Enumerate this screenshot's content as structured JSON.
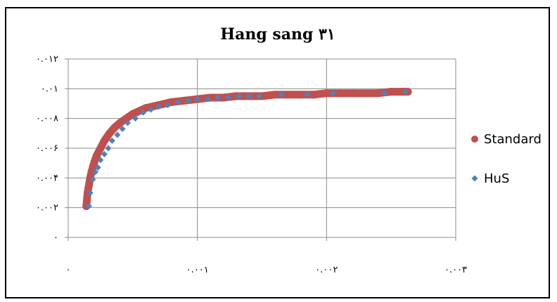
{
  "chart_data": {
    "type": "scatter",
    "title": "Hang sang ۳۱",
    "xlabel": "",
    "ylabel": "",
    "xlim": [
      0,
      0.003
    ],
    "ylim": [
      0,
      0.012
    ],
    "x_tick_labels": [
      "۰",
      "۰.۰۰۱",
      "۰.۰۰۲",
      "۰.۰۰۳"
    ],
    "y_tick_labels": [
      "۰",
      "۰.۰۰۲",
      "۰.۰۰۴",
      "۰.۰۰۶",
      "۰.۰۰۸",
      "۰.۰۱",
      "۰.۰۱۲"
    ],
    "grid": true,
    "legend_position": "right",
    "series": [
      {
        "name": "Standard",
        "color": "#c0504d",
        "marker": "circle",
        "x": [
          0.00014,
          0.000145,
          0.00015,
          0.00016,
          0.00017,
          0.00018,
          0.0002,
          0.00022,
          0.00025,
          0.00028,
          0.00032,
          0.00036,
          0.0004,
          0.00045,
          0.0005,
          0.00055,
          0.0006,
          0.00065,
          0.0007,
          0.0008,
          0.0009,
          0.001,
          0.0011,
          0.0012,
          0.0013,
          0.0014,
          0.0015,
          0.0016,
          0.0017,
          0.0018,
          0.0019,
          0.002,
          0.0021,
          0.0022,
          0.0023,
          0.0024,
          0.0025,
          0.0026,
          0.00263
        ],
        "y": [
          0.0021,
          0.0025,
          0.003,
          0.0035,
          0.004,
          0.0044,
          0.005,
          0.0055,
          0.006,
          0.0065,
          0.007,
          0.0074,
          0.0077,
          0.008,
          0.0083,
          0.0085,
          0.0087,
          0.0088,
          0.0089,
          0.0091,
          0.0092,
          0.0093,
          0.0094,
          0.0094,
          0.0095,
          0.0095,
          0.0095,
          0.0096,
          0.0096,
          0.0096,
          0.0096,
          0.0097,
          0.0097,
          0.0097,
          0.0097,
          0.0097,
          0.0098,
          0.0098,
          0.0098
        ]
      },
      {
        "name": "HuS",
        "color": "#4f81bd",
        "marker": "diamond",
        "x": [
          0.00016,
          0.00017,
          0.00019,
          0.00021,
          0.00023,
          0.00025,
          0.00028,
          0.00031,
          0.00034,
          0.00038,
          0.00042,
          0.00046,
          0.00052,
          0.00058,
          0.00064,
          0.0007,
          0.00077,
          0.00085,
          0.00093,
          0.001,
          0.00108,
          0.00116,
          0.00124,
          0.00132,
          0.0014,
          0.00148,
          0.00165,
          0.00185,
          0.00205,
          0.00245,
          0.00261
        ],
        "y": [
          0.0021,
          0.003,
          0.0039,
          0.0044,
          0.0047,
          0.0052,
          0.0056,
          0.006,
          0.0065,
          0.0069,
          0.0073,
          0.0077,
          0.008,
          0.0084,
          0.0086,
          0.0088,
          0.0089,
          0.0091,
          0.0092,
          0.0093,
          0.0093,
          0.0094,
          0.0094,
          0.0095,
          0.0095,
          0.0095,
          0.0096,
          0.0096,
          0.0097,
          0.0097,
          0.0098
        ]
      }
    ]
  }
}
